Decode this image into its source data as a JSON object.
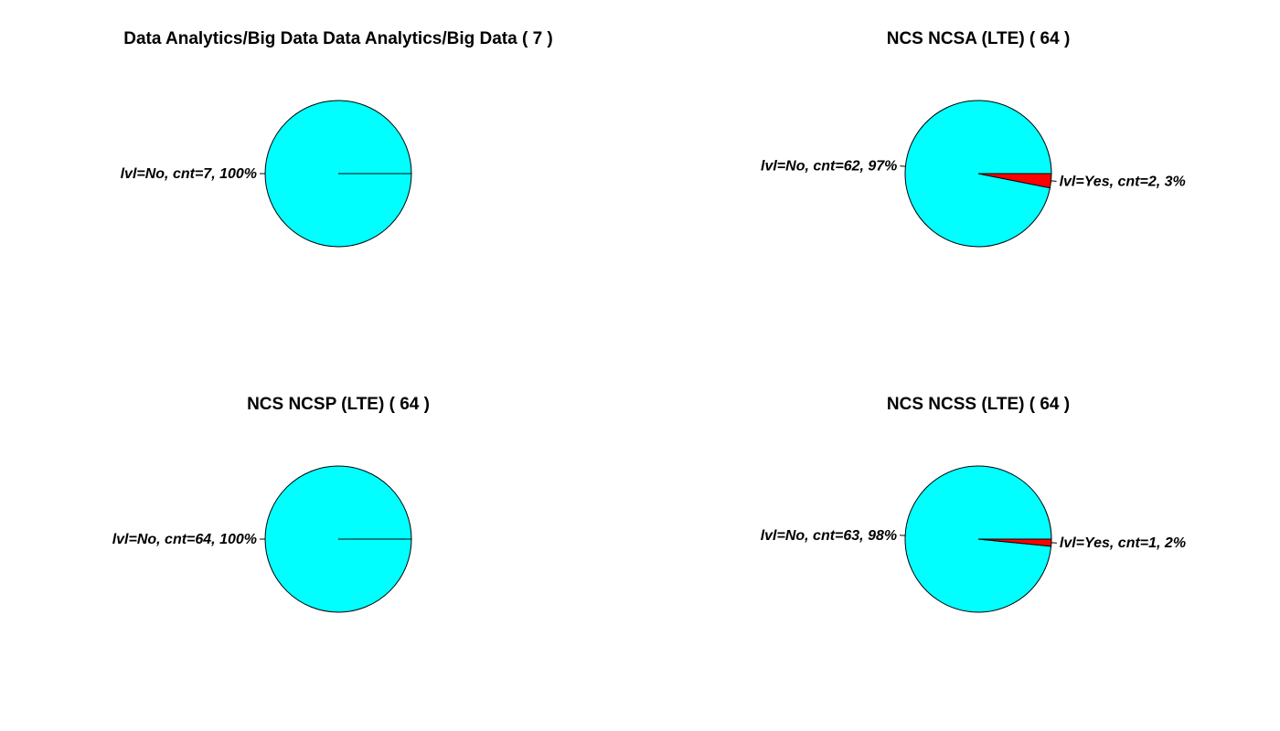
{
  "chart_data": [
    {
      "type": "pie",
      "title": "Data Analytics/Big Data Data Analytics/Big Data ( 7 )",
      "slices": [
        {
          "label": "lvl=No, cnt=7, 100%",
          "value": 7,
          "color": "#00ffff"
        }
      ]
    },
    {
      "type": "pie",
      "title": "NCS NCSA (LTE) ( 64 )",
      "slices": [
        {
          "label": "lvl=No, cnt=62, 97%",
          "value": 62,
          "color": "#00ffff"
        },
        {
          "label": "lvl=Yes, cnt=2, 3%",
          "value": 2,
          "color": "#ff0000"
        }
      ]
    },
    {
      "type": "pie",
      "title": "NCS NCSP (LTE) ( 64 )",
      "slices": [
        {
          "label": "lvl=No, cnt=64, 100%",
          "value": 64,
          "color": "#00ffff"
        }
      ]
    },
    {
      "type": "pie",
      "title": "NCS NCSS (LTE) ( 64 )",
      "slices": [
        {
          "label": "lvl=No, cnt=63, 98%",
          "value": 63,
          "color": "#00ffff"
        },
        {
          "label": "lvl=Yes, cnt=1, 2%",
          "value": 1,
          "color": "#ff0000"
        }
      ]
    }
  ]
}
